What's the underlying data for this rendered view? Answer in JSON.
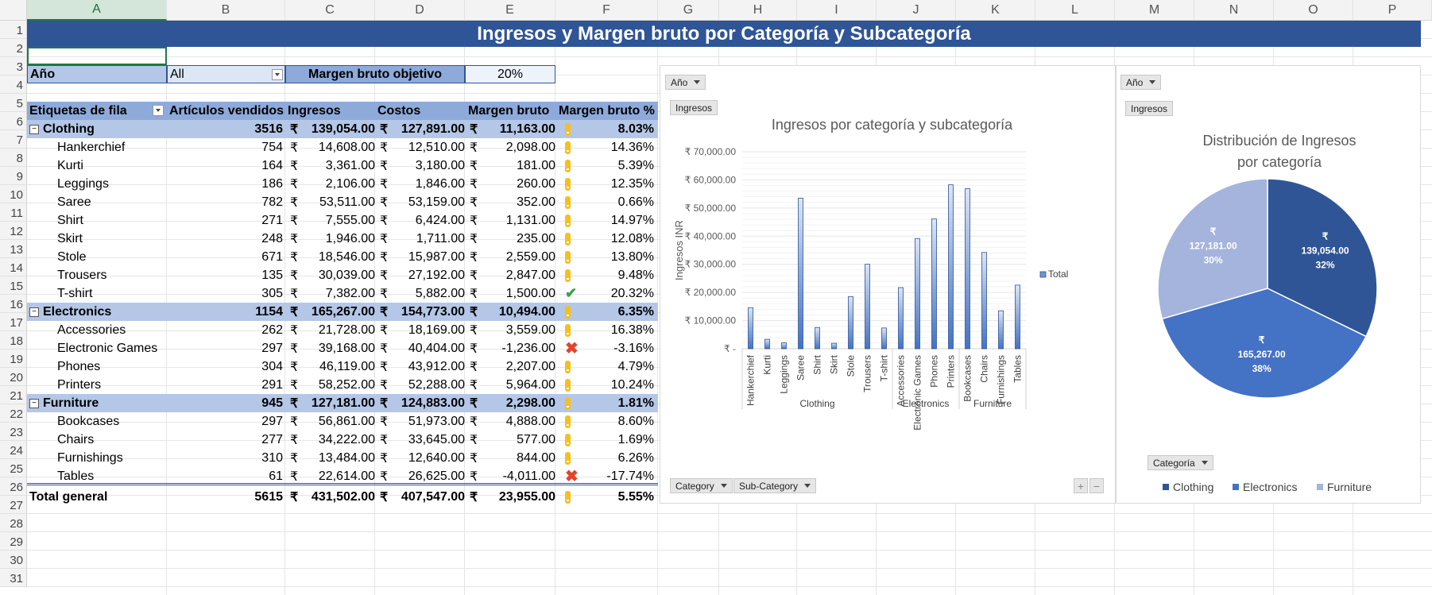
{
  "columns": [
    "A",
    "B",
    "C",
    "D",
    "E",
    "F",
    "G",
    "H",
    "I",
    "J",
    "K",
    "L",
    "M",
    "N",
    "O",
    "P"
  ],
  "rows": [
    1,
    2,
    3,
    4,
    5,
    6,
    7,
    8,
    9,
    10,
    11,
    12,
    13,
    14,
    15,
    16,
    17,
    18,
    19,
    20,
    21,
    22,
    23,
    24,
    25,
    26,
    27,
    28,
    29,
    30,
    31
  ],
  "title": "Ingresos y Margen bruto por Categoría y Subcategoría",
  "filters": {
    "year_label": "Año",
    "year_value": "All",
    "target_label": "Margen bruto objetivo",
    "target_value": "20%"
  },
  "pivot": {
    "headers": [
      "Etiquetas de fila",
      "Artículos vendidos",
      "Ingresos",
      "Costos",
      "Margen bruto",
      "Margen bruto %"
    ],
    "currency": "₹",
    "rows": [
      {
        "type": "cat",
        "label": "Clothing",
        "sold": "3516",
        "rev": "139,054.00",
        "cost": "127,891.00",
        "margin": "11,163.00",
        "icon": "warn",
        "pct": "8.03%"
      },
      {
        "type": "sub",
        "label": "Hankerchief",
        "sold": "754",
        "rev": "14,608.00",
        "cost": "12,510.00",
        "margin": "2,098.00",
        "icon": "warn",
        "pct": "14.36%"
      },
      {
        "type": "sub",
        "label": "Kurti",
        "sold": "164",
        "rev": "3,361.00",
        "cost": "3,180.00",
        "margin": "181.00",
        "icon": "warn",
        "pct": "5.39%"
      },
      {
        "type": "sub",
        "label": "Leggings",
        "sold": "186",
        "rev": "2,106.00",
        "cost": "1,846.00",
        "margin": "260.00",
        "icon": "warn",
        "pct": "12.35%"
      },
      {
        "type": "sub",
        "label": "Saree",
        "sold": "782",
        "rev": "53,511.00",
        "cost": "53,159.00",
        "margin": "352.00",
        "icon": "warn",
        "pct": "0.66%"
      },
      {
        "type": "sub",
        "label": "Shirt",
        "sold": "271",
        "rev": "7,555.00",
        "cost": "6,424.00",
        "margin": "1,131.00",
        "icon": "warn",
        "pct": "14.97%"
      },
      {
        "type": "sub",
        "label": "Skirt",
        "sold": "248",
        "rev": "1,946.00",
        "cost": "1,711.00",
        "margin": "235.00",
        "icon": "warn",
        "pct": "12.08%"
      },
      {
        "type": "sub",
        "label": "Stole",
        "sold": "671",
        "rev": "18,546.00",
        "cost": "15,987.00",
        "margin": "2,559.00",
        "icon": "warn",
        "pct": "13.80%"
      },
      {
        "type": "sub",
        "label": "Trousers",
        "sold": "135",
        "rev": "30,039.00",
        "cost": "27,192.00",
        "margin": "2,847.00",
        "icon": "warn",
        "pct": "9.48%"
      },
      {
        "type": "sub",
        "label": "T-shirt",
        "sold": "305",
        "rev": "7,382.00",
        "cost": "5,882.00",
        "margin": "1,500.00",
        "icon": "ok",
        "pct": "20.32%"
      },
      {
        "type": "cat",
        "label": "Electronics",
        "sold": "1154",
        "rev": "165,267.00",
        "cost": "154,773.00",
        "margin": "10,494.00",
        "icon": "warn",
        "pct": "6.35%"
      },
      {
        "type": "sub",
        "label": "Accessories",
        "sold": "262",
        "rev": "21,728.00",
        "cost": "18,169.00",
        "margin": "3,559.00",
        "icon": "warn",
        "pct": "16.38%"
      },
      {
        "type": "sub",
        "label": "Electronic Games",
        "sold": "297",
        "rev": "39,168.00",
        "cost": "40,404.00",
        "margin": "-1,236.00",
        "icon": "bad",
        "pct": "-3.16%"
      },
      {
        "type": "sub",
        "label": "Phones",
        "sold": "304",
        "rev": "46,119.00",
        "cost": "43,912.00",
        "margin": "2,207.00",
        "icon": "warn",
        "pct": "4.79%"
      },
      {
        "type": "sub",
        "label": "Printers",
        "sold": "291",
        "rev": "58,252.00",
        "cost": "52,288.00",
        "margin": "5,964.00",
        "icon": "warn",
        "pct": "10.24%"
      },
      {
        "type": "cat",
        "label": "Furniture",
        "sold": "945",
        "rev": "127,181.00",
        "cost": "124,883.00",
        "margin": "2,298.00",
        "icon": "warn",
        "pct": "1.81%"
      },
      {
        "type": "sub",
        "label": "Bookcases",
        "sold": "297",
        "rev": "56,861.00",
        "cost": "51,973.00",
        "margin": "4,888.00",
        "icon": "warn",
        "pct": "8.60%"
      },
      {
        "type": "sub",
        "label": "Chairs",
        "sold": "277",
        "rev": "34,222.00",
        "cost": "33,645.00",
        "margin": "577.00",
        "icon": "warn",
        "pct": "1.69%"
      },
      {
        "type": "sub",
        "label": "Furnishings",
        "sold": "310",
        "rev": "13,484.00",
        "cost": "12,640.00",
        "margin": "844.00",
        "icon": "warn",
        "pct": "6.26%"
      },
      {
        "type": "sub",
        "label": "Tables",
        "sold": "61",
        "rev": "22,614.00",
        "cost": "26,625.00",
        "margin": "-4,011.00",
        "icon": "bad",
        "pct": "-17.74%"
      },
      {
        "type": "total",
        "label": "Total general",
        "sold": "5615",
        "rev": "431,502.00",
        "cost": "407,547.00",
        "margin": "23,955.00",
        "icon": "warn",
        "pct": "5.55%"
      }
    ]
  },
  "bar_panel": {
    "filter_year": "Año",
    "value_field": "Ingresos",
    "axis_fields": [
      "Category",
      "Sub-Category"
    ]
  },
  "pie_panel": {
    "filter_year": "Año",
    "value_field": "Ingresos",
    "legend_field": "Categoría"
  },
  "chart_data": [
    {
      "type": "bar",
      "title": "Ingresos por categoría y subcategoría",
      "xlabel": "",
      "ylabel": "Ingresos INR",
      "ylim": [
        0,
        70000
      ],
      "yticks": [
        "₹ -",
        "₹ 10,000.00",
        "₹ 20,000.00",
        "₹ 30,000.00",
        "₹ 40,000.00",
        "₹ 50,000.00",
        "₹ 60,000.00",
        "₹ 70,000.00"
      ],
      "groups": [
        {
          "name": "Clothing",
          "categories": [
            "Hankerchief",
            "Kurti",
            "Leggings",
            "Saree",
            "Shirt",
            "Skirt",
            "Stole",
            "Trousers",
            "T-shirt"
          ]
        },
        {
          "name": "Electronics",
          "categories": [
            "Accessories",
            "Electronic Games",
            "Phones",
            "Printers"
          ]
        },
        {
          "name": "Furniture",
          "categories": [
            "Bookcases",
            "Chairs",
            "Furnishings",
            "Tables"
          ]
        }
      ],
      "series": [
        {
          "name": "Total",
          "values": [
            14608,
            3361,
            2106,
            53511,
            7555,
            1946,
            18546,
            30039,
            7382,
            21728,
            39168,
            46119,
            58252,
            56861,
            34222,
            13484,
            22614
          ]
        }
      ],
      "grid": true,
      "legend": "right",
      "color": "#4472c4"
    },
    {
      "type": "pie",
      "title": "Distribución de Ingresos por categoría",
      "slices": [
        {
          "name": "Clothing",
          "value": 139054,
          "label": "₹\n139,054.00",
          "pct": "32%",
          "color": "#2f5597"
        },
        {
          "name": "Electronics",
          "value": 165267,
          "label": "₹\n165,267.00",
          "pct": "38%",
          "color": "#4472c4"
        },
        {
          "name": "Furniture",
          "value": 127181,
          "label": "₹\n127,181.00",
          "pct": "30%",
          "color": "#a5b4dc"
        }
      ],
      "legend": "bottom"
    }
  ]
}
